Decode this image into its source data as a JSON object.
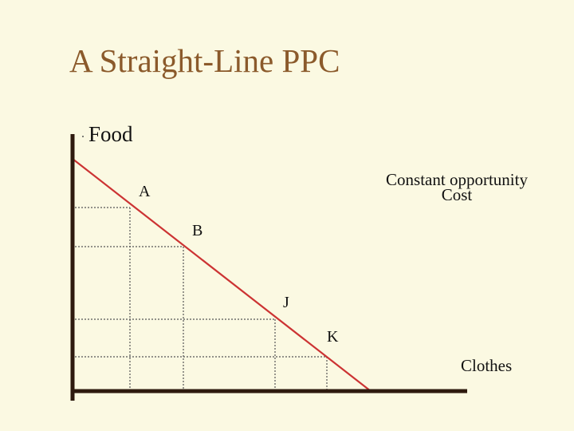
{
  "slide": {
    "title": "A Straight-Line PPC"
  },
  "axes": {
    "y_label": "Food",
    "x_label": "Clothes"
  },
  "points": [
    {
      "label": "A"
    },
    {
      "label": "B"
    },
    {
      "label": "J"
    },
    {
      "label": "K"
    }
  ],
  "annotation": {
    "line1": "Constant opportunity",
    "line2": "Cost"
  },
  "colors": {
    "background": "#FBF9E2",
    "title": "#8B5A2B",
    "axes": "#2E1A0E",
    "ppc_line": "#CC3333",
    "guides": "#555555"
  }
}
